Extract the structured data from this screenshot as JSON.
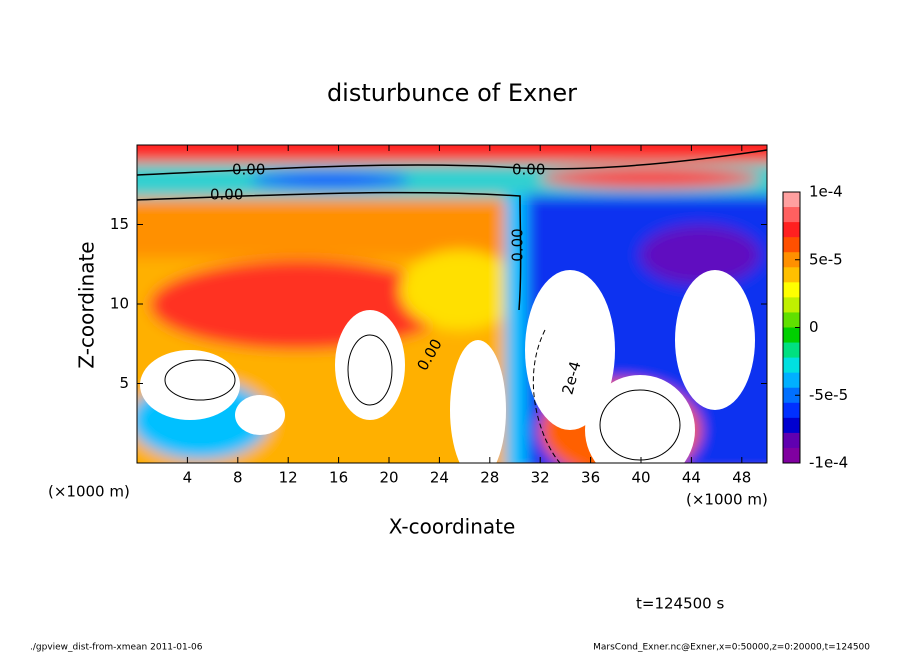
{
  "chart_data": {
    "type": "contour",
    "title": "disturbunce of Exner",
    "x_label": "X-coordinate",
    "y_label": "Z-coordinate",
    "x_unit": "(×1000 m)",
    "time_label": "t=124500 s",
    "footer_left": "./gpview_dist-from-xmean  2011-01-06",
    "footer_right": "MarsCond_Exner.nc@Exner,x=0:50000,z=0:20000,t=124500",
    "xlim": [
      0,
      50
    ],
    "xticks": [
      4,
      8,
      12,
      16,
      20,
      24,
      28,
      32,
      36,
      40,
      44,
      48
    ],
    "ylim": [
      0,
      20
    ],
    "yticks": [
      5,
      10,
      15
    ],
    "contour_labels": [
      "0.00",
      "0.00",
      "0.00",
      "0.00",
      "0.00",
      "2e-4"
    ],
    "colorbar_lim": [
      -0.0001,
      0.0001
    ],
    "colorbar_ticks": [
      {
        "value": 0.0001,
        "label": "1e-4"
      },
      {
        "value": 5e-05,
        "label": "5e-5"
      },
      0,
      {
        "value": -5e-05,
        "label": "-5e-5"
      },
      {
        "value": -0.0001,
        "label": "-1e-4"
      }
    ],
    "colorbar_colors": [
      "#ffa0a0",
      "#ff6060",
      "#ff2020",
      "#ff5000",
      "#ff9000",
      "#ffc000",
      "#ffff00",
      "#c0f000",
      "#60e000",
      "#00d000",
      "#00e080",
      "#00e0e0",
      "#00b0ff",
      "#0070ff",
      "#0030ff",
      "#0000d0",
      "#6000b0",
      "#8000a0"
    ],
    "grid": false
  }
}
